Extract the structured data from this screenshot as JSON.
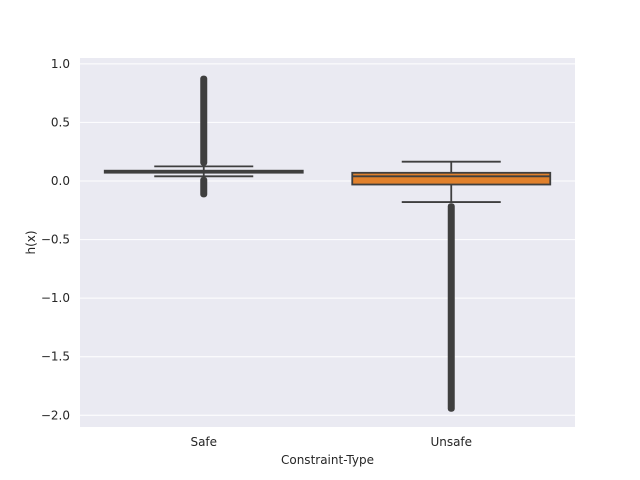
{
  "chart_data": {
    "type": "boxplot",
    "title": "",
    "xlabel": "Constraint-Type",
    "ylabel": "h(x)",
    "categories": [
      "Safe",
      "Unsafe"
    ],
    "ylim": [
      -2.1,
      1.05
    ],
    "yticks": [
      1.0,
      0.5,
      0.0,
      -0.5,
      -1.0,
      -1.5,
      -2.0
    ],
    "ytick_labels": [
      "1.0",
      "0.5",
      "0.0",
      "−0.5",
      "−1.0",
      "−1.5",
      "−2.0"
    ],
    "grid": true,
    "boxes": [
      {
        "category": "Safe",
        "color": "#3a75af",
        "whisker_low": 0.04,
        "q1": 0.072,
        "median": 0.08,
        "q3": 0.088,
        "whisker_high": 0.125,
        "outliers_high": [
          0.13,
          0.9
        ],
        "outliers_low": [
          -0.14,
          0.035
        ]
      },
      {
        "category": "Unsafe",
        "color": "#e1812c",
        "whisker_low": -0.18,
        "q1": -0.03,
        "median": 0.04,
        "q3": 0.07,
        "whisker_high": 0.165,
        "outliers_high": [],
        "outliers_low": [
          -1.97,
          -0.19
        ]
      }
    ],
    "colors": {
      "background": "#eaeaf2",
      "grid": "#ffffff",
      "line": "#3f3f3f"
    }
  }
}
